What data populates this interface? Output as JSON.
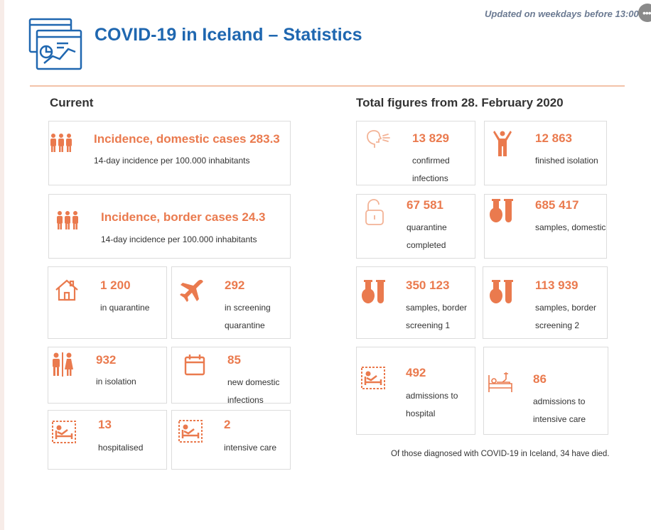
{
  "header": {
    "updated": "Updated on weekdays before 13:00",
    "title": "COVID-19 in Iceland – Statistics",
    "more": "•••"
  },
  "sections": {
    "current": "Current",
    "total": "Total figures from 28. February 2020"
  },
  "current": {
    "domestic_incidence": {
      "value": "Incidence, domestic cases 283.3",
      "label": "14-day incidence per 100.000 inhabitants"
    },
    "border_incidence": {
      "value": "Incidence, border cases 24.3",
      "label": "14-day incidence per 100.000 inhabitants"
    },
    "quarantine": {
      "value": "1 200",
      "label": "in quarantine"
    },
    "screening": {
      "value": "292",
      "label": "in screening quarantine"
    },
    "isolation": {
      "value": "932",
      "label": "in isolation"
    },
    "new_domestic": {
      "value": "85",
      "label": "new domestic infections"
    },
    "hospitalised": {
      "value": "13",
      "label": "hospitalised"
    },
    "intensive": {
      "value": "2",
      "label": "intensive care"
    }
  },
  "total": {
    "confirmed": {
      "value": "13 829",
      "label": "confirmed infections"
    },
    "finished": {
      "value": "12 863",
      "label": "finished isolation"
    },
    "quarantine_completed": {
      "value": "67 581",
      "label": "quarantine completed"
    },
    "samples_domestic": {
      "value": "685 417",
      "label": "samples, domestic"
    },
    "samples_border1": {
      "value": "350 123",
      "label": "samples, border screening 1"
    },
    "samples_border2": {
      "value": "113 939",
      "label": "samples, border screening 2"
    },
    "admissions_hospital": {
      "value": "492",
      "label": "admissions to hospital"
    },
    "admissions_icu": {
      "value": "86",
      "label": "admissions to intensive care"
    }
  },
  "footer": {
    "died": "Of those diagnosed with COVID-19 in Iceland, 34 have died."
  },
  "colors": {
    "accent": "#ea7a4e",
    "title": "#1f67b0",
    "border": "#dcdcdc"
  }
}
